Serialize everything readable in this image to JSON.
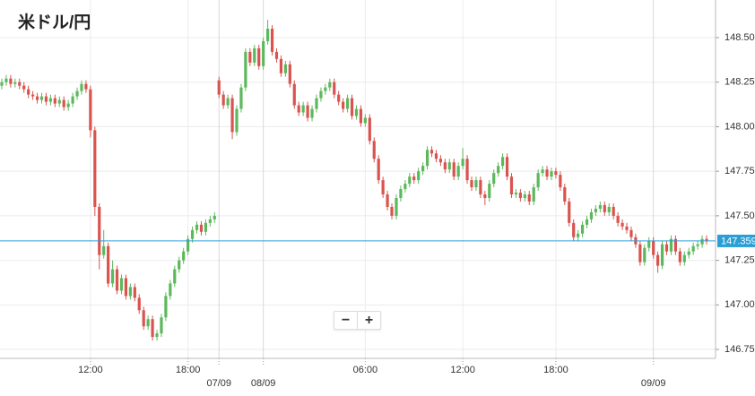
{
  "chart_data": {
    "type": "candlestick",
    "title": "米ドル/円",
    "categories": [
      null,
      null,
      null,
      null,
      null,
      null,
      null,
      null,
      null,
      null,
      null,
      null,
      null,
      null,
      null,
      null,
      null,
      null,
      null,
      null,
      "12:00",
      null,
      null,
      null,
      null,
      null,
      null,
      null,
      null,
      null,
      null,
      null,
      null,
      null,
      null,
      null,
      null,
      null,
      null,
      null,
      null,
      null,
      "18:00",
      null,
      null,
      null,
      null,
      null,
      null,
      "07/09",
      null,
      null,
      null,
      null,
      null,
      null,
      null,
      null,
      null,
      "08/09",
      null,
      null,
      null,
      null,
      null,
      null,
      null,
      null,
      null,
      null,
      null,
      null,
      null,
      null,
      null,
      null,
      null,
      null,
      null,
      null,
      null,
      null,
      "06:00",
      null,
      null,
      null,
      null,
      null,
      null,
      null,
      null,
      null,
      null,
      null,
      null,
      null,
      null,
      null,
      null,
      null,
      null,
      null,
      null,
      null,
      "12:00",
      null,
      null,
      null,
      null,
      null,
      null,
      null,
      null,
      null,
      null,
      null,
      null,
      null,
      null,
      null,
      null,
      null,
      null,
      null,
      null,
      "18:00",
      null,
      null,
      null,
      null,
      null,
      null,
      null,
      null,
      null,
      null,
      null,
      null,
      null,
      null,
      null,
      null,
      null,
      null,
      null,
      null,
      null,
      "09/09",
      null,
      null,
      null,
      null,
      null,
      null,
      null,
      null,
      null,
      null,
      null,
      null
    ],
    "open": [
      148.23,
      148.25,
      148.27,
      148.24,
      148.25,
      148.23,
      148.21,
      148.18,
      148.17,
      148.15,
      148.17,
      148.14,
      148.16,
      148.13,
      148.15,
      148.11,
      148.13,
      148.17,
      148.2,
      148.24,
      148.21,
      147.98,
      147.55,
      147.28,
      147.33,
      147.12,
      147.2,
      147.08,
      147.15,
      147.05,
      147.1,
      147.04,
      146.97,
      146.88,
      146.92,
      146.82,
      146.84,
      146.93,
      147.05,
      147.12,
      147.2,
      147.25,
      147.3,
      147.37,
      147.42,
      147.45,
      147.41,
      147.46,
      147.48,
      148.26,
      148.18,
      148.12,
      148.16,
      147.97,
      148.1,
      148.22,
      148.42,
      148.36,
      148.44,
      148.34,
      148.48,
      148.55,
      148.42,
      148.38,
      148.3,
      148.35,
      148.24,
      148.12,
      148.08,
      148.12,
      148.05,
      148.1,
      148.16,
      148.2,
      148.22,
      148.25,
      148.18,
      148.14,
      148.1,
      148.16,
      148.06,
      148.1,
      148.02,
      148.05,
      147.92,
      147.82,
      147.7,
      147.62,
      147.55,
      147.5,
      147.6,
      147.65,
      147.68,
      147.72,
      147.7,
      147.75,
      147.78,
      147.87,
      147.85,
      147.82,
      147.8,
      147.76,
      147.8,
      147.72,
      147.78,
      147.82,
      147.7,
      147.66,
      147.7,
      147.62,
      147.6,
      147.68,
      147.74,
      147.78,
      147.83,
      147.72,
      147.62,
      147.63,
      147.6,
      147.62,
      147.58,
      147.66,
      147.74,
      147.76,
      147.72,
      147.75,
      147.73,
      147.66,
      147.58,
      147.46,
      147.38,
      147.4,
      147.45,
      147.48,
      147.52,
      147.54,
      147.56,
      147.52,
      147.55,
      147.5,
      147.46,
      147.44,
      147.42,
      147.38,
      147.34,
      147.24,
      147.32,
      147.36,
      147.28,
      147.22,
      147.34,
      147.3,
      147.37,
      147.3,
      147.24,
      147.28,
      147.3,
      147.33,
      147.34,
      147.37
    ],
    "high": [
      148.27,
      148.29,
      148.29,
      148.27,
      148.27,
      148.25,
      148.23,
      148.2,
      148.19,
      148.19,
      148.19,
      148.18,
      148.18,
      148.17,
      148.17,
      148.15,
      148.19,
      148.22,
      148.26,
      148.26,
      148.23,
      148.0,
      147.57,
      147.42,
      147.35,
      147.25,
      147.22,
      147.17,
      147.17,
      147.12,
      147.12,
      147.06,
      146.99,
      146.94,
      146.94,
      146.86,
      146.95,
      147.07,
      147.14,
      147.22,
      147.27,
      147.32,
      147.39,
      147.44,
      147.47,
      147.47,
      147.48,
      147.5,
      147.52,
      148.28,
      148.2,
      148.18,
      148.18,
      148.12,
      148.24,
      148.44,
      148.44,
      148.46,
      148.46,
      148.5,
      148.6,
      148.57,
      148.44,
      148.4,
      148.37,
      148.37,
      148.26,
      148.14,
      148.14,
      148.14,
      148.12,
      148.18,
      148.22,
      148.24,
      148.27,
      148.27,
      148.2,
      148.16,
      148.18,
      148.18,
      148.12,
      148.12,
      148.07,
      148.07,
      147.94,
      147.84,
      147.72,
      147.64,
      147.57,
      147.62,
      147.67,
      147.7,
      147.74,
      147.74,
      147.77,
      147.8,
      147.89,
      147.89,
      147.87,
      147.84,
      147.82,
      147.82,
      147.82,
      147.8,
      147.88,
      147.84,
      147.72,
      147.72,
      147.72,
      147.64,
      147.7,
      147.76,
      147.8,
      147.85,
      147.85,
      147.74,
      147.65,
      147.65,
      147.64,
      147.64,
      147.68,
      147.76,
      147.78,
      147.78,
      147.77,
      147.77,
      147.75,
      147.68,
      147.6,
      147.48,
      147.42,
      147.47,
      147.5,
      147.54,
      147.56,
      147.58,
      147.58,
      147.57,
      147.57,
      147.52,
      147.48,
      147.46,
      147.44,
      147.4,
      147.36,
      147.34,
      147.38,
      147.38,
      147.3,
      147.36,
      147.36,
      147.39,
      147.39,
      147.32,
      147.3,
      147.32,
      147.35,
      147.36,
      147.39,
      147.39
    ],
    "low": [
      148.21,
      148.23,
      148.22,
      148.22,
      148.21,
      148.19,
      148.16,
      148.15,
      148.13,
      148.13,
      148.12,
      148.12,
      148.11,
      148.11,
      148.09,
      148.09,
      148.11,
      148.15,
      148.18,
      148.19,
      147.94,
      147.5,
      147.2,
      147.26,
      147.1,
      147.1,
      147.06,
      147.06,
      147.03,
      147.03,
      147.02,
      146.95,
      146.86,
      146.86,
      146.8,
      146.8,
      146.82,
      146.91,
      147.03,
      147.1,
      147.18,
      147.23,
      147.28,
      147.35,
      147.4,
      147.39,
      147.39,
      147.44,
      147.46,
      148.16,
      148.1,
      148.1,
      147.93,
      147.95,
      148.08,
      148.2,
      148.34,
      148.34,
      148.32,
      148.32,
      148.46,
      148.4,
      148.36,
      148.28,
      148.28,
      148.22,
      148.1,
      148.06,
      148.06,
      148.03,
      148.03,
      148.08,
      148.14,
      148.18,
      148.2,
      148.16,
      148.12,
      148.08,
      148.08,
      148.04,
      148.04,
      148.0,
      148.0,
      147.9,
      147.8,
      147.68,
      147.6,
      147.53,
      147.48,
      147.48,
      147.58,
      147.63,
      147.66,
      147.68,
      147.68,
      147.73,
      147.76,
      147.83,
      147.8,
      147.78,
      147.74,
      147.74,
      147.7,
      147.7,
      147.76,
      147.68,
      147.64,
      147.64,
      147.6,
      147.56,
      147.58,
      147.66,
      147.72,
      147.76,
      147.7,
      147.6,
      147.6,
      147.58,
      147.58,
      147.56,
      147.56,
      147.64,
      147.72,
      147.7,
      147.7,
      147.71,
      147.64,
      147.56,
      147.44,
      147.36,
      147.36,
      147.38,
      147.43,
      147.46,
      147.5,
      147.52,
      147.5,
      147.5,
      147.48,
      147.44,
      147.42,
      147.4,
      147.36,
      147.32,
      147.22,
      147.22,
      147.3,
      147.26,
      147.18,
      147.2,
      147.28,
      147.28,
      147.28,
      147.22,
      147.22,
      147.26,
      147.28,
      147.31,
      147.32,
      147.34
    ],
    "close": [
      148.25,
      148.27,
      148.24,
      148.25,
      148.23,
      148.21,
      148.18,
      148.17,
      148.15,
      148.17,
      148.14,
      148.16,
      148.13,
      148.15,
      148.11,
      148.13,
      148.17,
      148.2,
      148.24,
      148.21,
      147.98,
      147.55,
      147.28,
      147.33,
      147.12,
      147.2,
      147.08,
      147.15,
      147.05,
      147.1,
      147.04,
      146.97,
      146.88,
      146.92,
      146.82,
      146.84,
      146.93,
      147.05,
      147.12,
      147.2,
      147.25,
      147.3,
      147.37,
      147.42,
      147.45,
      147.41,
      147.46,
      147.48,
      147.5,
      148.18,
      148.12,
      148.16,
      147.97,
      148.1,
      148.22,
      148.42,
      148.36,
      148.44,
      148.34,
      148.48,
      148.55,
      148.42,
      148.38,
      148.3,
      148.35,
      148.24,
      148.12,
      148.08,
      148.12,
      148.05,
      148.1,
      148.16,
      148.2,
      148.22,
      148.25,
      148.18,
      148.14,
      148.1,
      148.16,
      148.06,
      148.1,
      148.02,
      148.05,
      147.92,
      147.82,
      147.7,
      147.62,
      147.55,
      147.5,
      147.6,
      147.65,
      147.68,
      147.72,
      147.7,
      147.75,
      147.78,
      147.87,
      147.85,
      147.82,
      147.8,
      147.76,
      147.8,
      147.72,
      147.78,
      147.82,
      147.7,
      147.66,
      147.7,
      147.62,
      147.6,
      147.68,
      147.74,
      147.78,
      147.83,
      147.72,
      147.62,
      147.63,
      147.6,
      147.62,
      147.58,
      147.66,
      147.74,
      147.76,
      147.72,
      147.75,
      147.73,
      147.66,
      147.58,
      147.46,
      147.38,
      147.4,
      147.45,
      147.48,
      147.52,
      147.54,
      147.56,
      147.52,
      147.55,
      147.5,
      147.46,
      147.44,
      147.42,
      147.38,
      147.34,
      147.24,
      147.32,
      147.36,
      147.28,
      147.22,
      147.34,
      147.3,
      147.37,
      147.3,
      147.24,
      147.28,
      147.3,
      147.33,
      147.34,
      147.37,
      147.359
    ],
    "up_color": "#5cb85c",
    "down_color": "#d9534f",
    "last_price": 147.359,
    "last_price_color": "#2a9fd6",
    "ylim": [
      146.7,
      148.711
    ],
    "yticks": [
      {
        "value": 148.5,
        "label": "148.500"
      },
      {
        "value": 148.25,
        "label": "148.250"
      },
      {
        "value": 148.0,
        "label": "148.000"
      },
      {
        "value": 147.75,
        "label": "147.750"
      },
      {
        "value": 147.5,
        "label": "147.500"
      },
      {
        "value": 147.25,
        "label": "147.250"
      },
      {
        "value": 147.0,
        "label": "147.000"
      },
      {
        "value": 146.75,
        "label": "146.750"
      }
    ],
    "grid": true,
    "zoom_buttons": [
      "−",
      "+"
    ]
  }
}
